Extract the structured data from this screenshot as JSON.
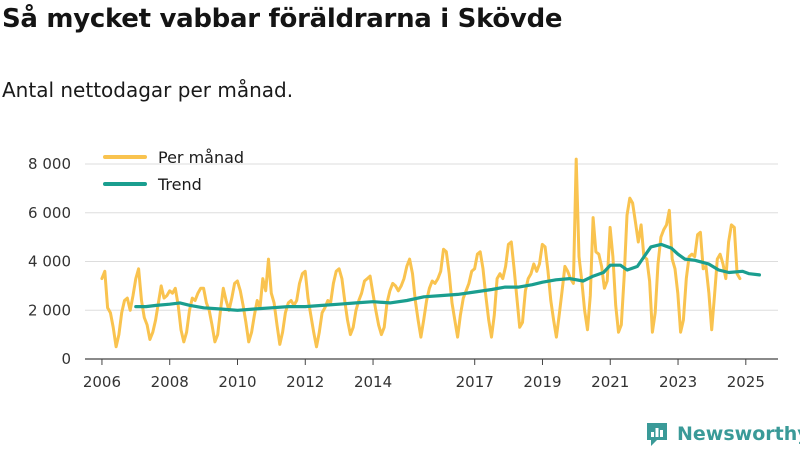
{
  "header": {
    "title": "Så mycket vabbar föräldrarna i Skövde",
    "subtitle": "Antal nettodagar per månad."
  },
  "brand": {
    "name": "Newsworthy",
    "icon": "newsworthy-logo-icon"
  },
  "colors": {
    "monthly": "#f9c34f",
    "trend": "#1a9e8f",
    "grid": "#dddddd",
    "axis": "#444444",
    "brand": "#3a9a98"
  },
  "chart_data": {
    "type": "line",
    "title": "Så mycket vabbar föräldrarna i Skövde",
    "subtitle": "Antal nettodagar per månad.",
    "xlabel": "",
    "ylabel": "",
    "xlim": [
      2005.5,
      2025.95
    ],
    "ylim": [
      0,
      8000
    ],
    "yticks": [
      0,
      2000,
      4000,
      6000,
      8000
    ],
    "ytick_labels": [
      "0",
      "2 000",
      "4 000",
      "6 000",
      "8 000"
    ],
    "xticks": [
      2006,
      2008,
      2010,
      2012,
      2014,
      2017,
      2019,
      2021,
      2023,
      2025
    ],
    "xtick_labels": [
      "2006",
      "2008",
      "2010",
      "2012",
      "2014",
      "2017",
      "2019",
      "2021",
      "2023",
      "2025"
    ],
    "grid": "horizontal",
    "legend_position": "top-left",
    "series": [
      {
        "name": "Per månad",
        "x_start": 2006.0,
        "x_step": 0.0833,
        "values": [
          3300,
          3600,
          2100,
          1900,
          1300,
          500,
          1000,
          1900,
          2400,
          2500,
          2000,
          2600,
          3300,
          3700,
          2400,
          1700,
          1400,
          800,
          1100,
          1600,
          2300,
          3000,
          2500,
          2600,
          2800,
          2700,
          2900,
          2200,
          1200,
          700,
          1100,
          2000,
          2500,
          2400,
          2700,
          2900,
          2900,
          2300,
          2000,
          1400,
          700,
          1000,
          2000,
          2900,
          2400,
          2000,
          2500,
          3100,
          3200,
          2800,
          2200,
          1500,
          700,
          1100,
          1800,
          2400,
          2100,
          3300,
          2800,
          4100,
          2700,
          2300,
          1400,
          600,
          1100,
          1900,
          2300,
          2400,
          2200,
          2400,
          3100,
          3500,
          3600,
          2500,
          1800,
          1100,
          500,
          1100,
          1900,
          2100,
          2400,
          2300,
          3100,
          3600,
          3700,
          3300,
          2400,
          1600,
          1000,
          1300,
          2000,
          2400,
          2700,
          3200,
          3300,
          3400,
          2700,
          2000,
          1400,
          1000,
          1300,
          2300,
          2800,
          3100,
          3000,
          2800,
          3000,
          3300,
          3800,
          4100,
          3500,
          2400,
          1600,
          900,
          1600,
          2400,
          2900,
          3200,
          3100,
          3300,
          3600,
          4500,
          4400,
          3500,
          2300,
          1600,
          900,
          1800,
          2500,
          2800,
          3100,
          3600,
          3700,
          4300,
          4400,
          3700,
          2600,
          1600,
          900,
          1800,
          3300,
          3500,
          3300,
          3800,
          4700,
          4800,
          3700,
          2500,
          1300,
          1500,
          2800,
          3300,
          3500,
          3900,
          3600,
          3900,
          4700,
          4600,
          3600,
          2400,
          1600,
          900,
          1800,
          2800,
          3800,
          3600,
          3300,
          3100,
          8200,
          4200,
          3200,
          2000,
          1200,
          2600,
          5800,
          4400,
          4300,
          3800,
          2900,
          3200,
          5400,
          4200,
          2200,
          1100,
          1400,
          3400,
          5900,
          6600,
          6400,
          5600,
          4800,
          5500,
          4200,
          4100,
          3200,
          1100,
          1900,
          3900,
          5000,
          5300,
          5500,
          6100,
          4100,
          3700,
          2700,
          1100,
          1600,
          3300,
          4200,
          4300,
          4200,
          5100,
          5200,
          3700,
          3800,
          2700,
          1200,
          2600,
          4100,
          4300,
          3900,
          3300,
          4800,
          5500,
          5400,
          3500,
          3300
        ]
      },
      {
        "name": "Trend",
        "points": [
          [
            2007.0,
            2150
          ],
          [
            2007.3,
            2150
          ],
          [
            2007.6,
            2200
          ],
          [
            2008.0,
            2250
          ],
          [
            2008.3,
            2300
          ],
          [
            2008.6,
            2200
          ],
          [
            2009.0,
            2100
          ],
          [
            2009.5,
            2050
          ],
          [
            2010.0,
            2000
          ],
          [
            2010.5,
            2050
          ],
          [
            2011.0,
            2100
          ],
          [
            2011.5,
            2150
          ],
          [
            2012.0,
            2150
          ],
          [
            2012.5,
            2200
          ],
          [
            2013.0,
            2250
          ],
          [
            2013.5,
            2300
          ],
          [
            2014.0,
            2350
          ],
          [
            2014.5,
            2300
          ],
          [
            2015.0,
            2400
          ],
          [
            2015.5,
            2550
          ],
          [
            2016.0,
            2600
          ],
          [
            2016.5,
            2650
          ],
          [
            2017.0,
            2750
          ],
          [
            2017.5,
            2850
          ],
          [
            2017.9,
            2950
          ],
          [
            2018.3,
            2950
          ],
          [
            2018.7,
            3050
          ],
          [
            2019.0,
            3150
          ],
          [
            2019.4,
            3250
          ],
          [
            2019.8,
            3300
          ],
          [
            2020.2,
            3200
          ],
          [
            2020.5,
            3400
          ],
          [
            2020.8,
            3550
          ],
          [
            2021.0,
            3850
          ],
          [
            2021.3,
            3850
          ],
          [
            2021.5,
            3650
          ],
          [
            2021.8,
            3800
          ],
          [
            2022.0,
            4200
          ],
          [
            2022.2,
            4600
          ],
          [
            2022.5,
            4700
          ],
          [
            2022.8,
            4550
          ],
          [
            2023.0,
            4300
          ],
          [
            2023.2,
            4100
          ],
          [
            2023.5,
            4050
          ],
          [
            2023.9,
            3900
          ],
          [
            2024.2,
            3650
          ],
          [
            2024.5,
            3550
          ],
          [
            2024.9,
            3600
          ],
          [
            2025.1,
            3500
          ],
          [
            2025.4,
            3450
          ]
        ]
      }
    ]
  }
}
